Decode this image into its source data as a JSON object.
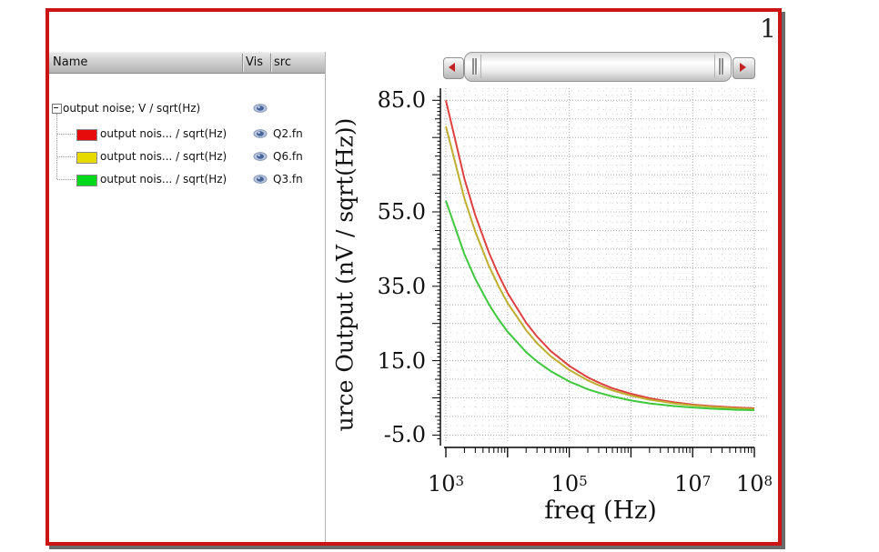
{
  "window": {
    "strip_number": "1"
  },
  "signal_panel": {
    "columns": [
      "Name",
      "Vis",
      "src"
    ],
    "group": {
      "label": "output noise; V / sqrt(Hz)"
    },
    "signals": [
      {
        "label": "output nois... / sqrt(Hz)",
        "color": "#e60c0c",
        "src": "Q2.fn"
      },
      {
        "label": "output nois... / sqrt(Hz)",
        "color": "#e6da00",
        "src": "Q6.fn"
      },
      {
        "label": "output nois... / sqrt(Hz)",
        "color": "#00d81c",
        "src": "Q3.fn"
      }
    ]
  },
  "chart_data": {
    "type": "line",
    "x_scale": "log",
    "grid": true,
    "xlabel": "freq (Hz)",
    "ylabel": "urce Output (nV / sqrt(Hz))",
    "xlim": [
      1000,
      100000000
    ],
    "ylim": [
      -5,
      85
    ],
    "y_ticks": [
      {
        "label": "85.0",
        "value": 85
      },
      {
        "label": "55.0",
        "value": 55
      },
      {
        "label": "35.0",
        "value": 35
      },
      {
        "label": "15.0",
        "value": 15
      },
      {
        "label": "-5.0",
        "value": -5
      }
    ],
    "x_ticks": [
      {
        "base": "10",
        "exp": "3",
        "value": 1000
      },
      {
        "base": "10",
        "exp": "5",
        "value": 100000
      },
      {
        "base": "10",
        "exp": "7",
        "value": 10000000
      },
      {
        "base": "10",
        "exp": "8",
        "value": 100000000
      }
    ],
    "x": [
      1000,
      2000,
      3000,
      5000,
      7000,
      10000,
      20000,
      30000,
      50000,
      100000,
      200000,
      300000,
      500000,
      1000000,
      2000000,
      3000000,
      5000000,
      10000000,
      20000000,
      50000000,
      100000000
    ],
    "series": [
      {
        "name": "Q2.fn",
        "color": "#de4040",
        "values": [
          85,
          63.9,
          54.1,
          44,
          38.4,
          33.2,
          25.2,
          21.5,
          17.6,
          13.6,
          10.5,
          9.1,
          7.6,
          6.1,
          4.9,
          4.4,
          3.8,
          3.2,
          2.8,
          2.4,
          2.2
        ]
      },
      {
        "name": "Q6.fn",
        "color": "#bfae2e",
        "values": [
          78,
          58.6,
          49.7,
          40.4,
          35.3,
          30.5,
          23.2,
          19.7,
          16.2,
          12.5,
          9.7,
          8.4,
          7,
          5.6,
          4.5,
          4.1,
          3.5,
          3,
          2.6,
          2.2,
          2
        ]
      },
      {
        "name": "Q3.fn",
        "color": "#3dc83d",
        "values": [
          58,
          43.6,
          37,
          30.1,
          26.3,
          22.8,
          17.3,
          14.8,
          12.2,
          9.4,
          7.3,
          6.4,
          5.4,
          4.3,
          3.5,
          3.2,
          2.8,
          2.4,
          2.1,
          1.8,
          1.7
        ]
      }
    ]
  }
}
